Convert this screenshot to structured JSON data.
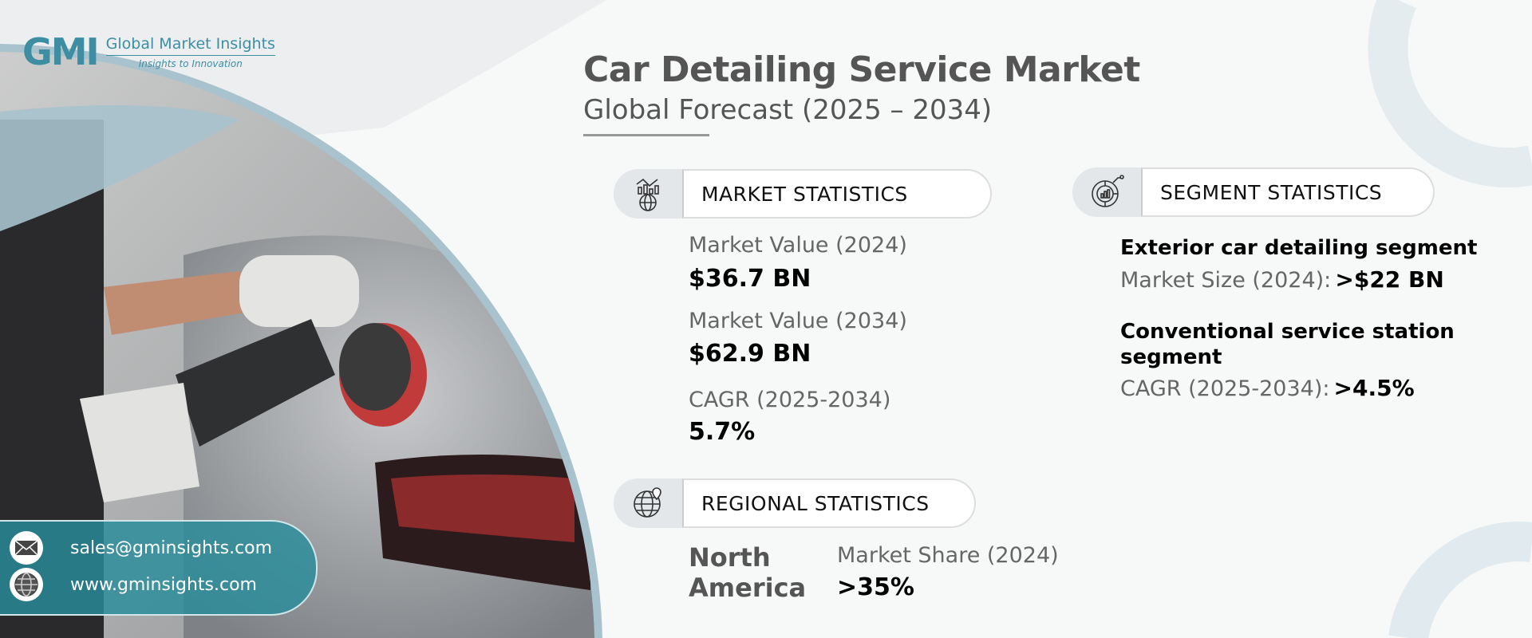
{
  "logo": {
    "mark": "GMI",
    "name": "Global Market Insights",
    "tagline": "Insights to Innovation"
  },
  "header": {
    "title": "Car Detailing Service Market",
    "subtitle": "Global Forecast (2025 – 2034)"
  },
  "market_statistics": {
    "heading": "MARKET STATISTICS",
    "icon": "chart-globe-icon",
    "items": [
      {
        "label": "Market Value (2024)",
        "value": "$36.7 BN"
      },
      {
        "label": "Market Value (2034)",
        "value": "$62.9 BN"
      },
      {
        "label": "CAGR (2025-2034)",
        "value": "5.7%"
      }
    ]
  },
  "regional_statistics": {
    "heading": "REGIONAL STATISTICS",
    "icon": "globe-pin-icon",
    "region": "North America",
    "region_line1": "North",
    "region_line2": "America",
    "label": "Market Share (2024)",
    "value": ">35%"
  },
  "segment_statistics": {
    "heading": "SEGMENT STATISTICS",
    "icon": "segment-chart-icon",
    "items": [
      {
        "title": "Exterior car detailing segment",
        "label": "Market Size (2024):",
        "value": ">$22 BN"
      },
      {
        "title_line1": "Conventional service station",
        "title_line2": "segment",
        "label": "CAGR (2025-2034):",
        "value": ">4.5%"
      }
    ]
  },
  "contact": {
    "email": "sales@gminsights.com",
    "website": "www.gminsights.com"
  },
  "colors": {
    "accent_teal": "#2a8c9b",
    "light_blue": "#a9c6d2",
    "title_gray": "#555555"
  }
}
